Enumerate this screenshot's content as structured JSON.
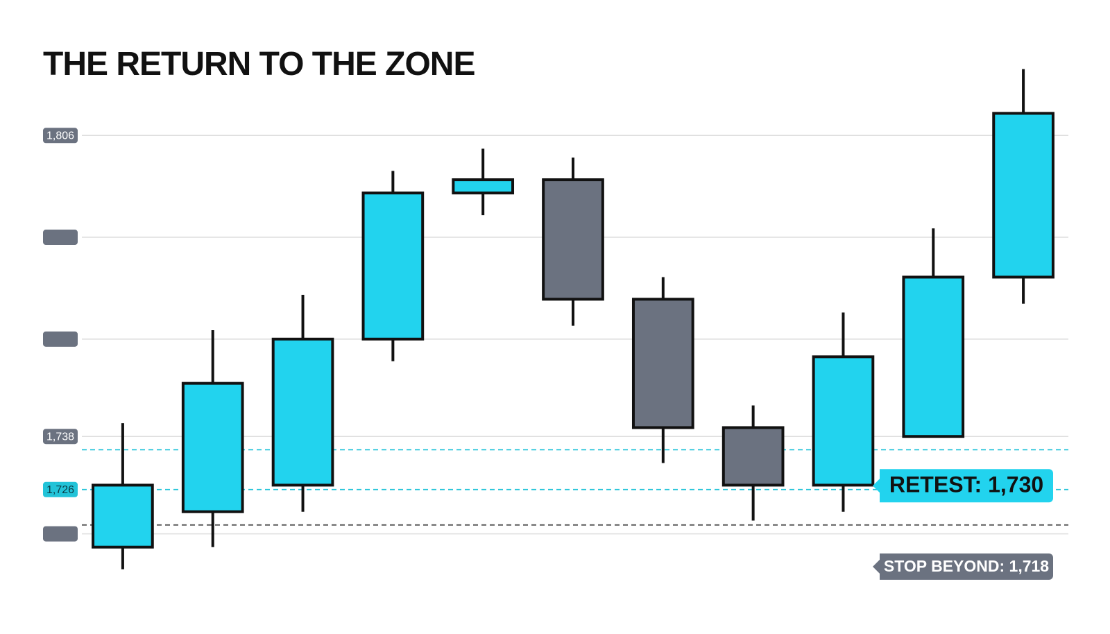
{
  "chart_data": {
    "type": "candlestick",
    "title": "THE RETURN TO THE ZONE",
    "categories": [
      null,
      null,
      null,
      null,
      null,
      null,
      null,
      null,
      null,
      null,
      null
    ],
    "open": [
      1713,
      1721,
      1727,
      1760,
      1793,
      1796,
      1769,
      1740,
      1727,
      1738,
      1774
    ],
    "high": [
      1741,
      1762,
      1770,
      1798,
      1803,
      1801,
      1774,
      1745,
      1766,
      1785,
      1821
    ],
    "low": [
      1708,
      1713,
      1721,
      1755,
      1788,
      1763,
      1732,
      1719,
      1721,
      1738,
      1768
    ],
    "close": [
      1727,
      1750,
      1760,
      1793,
      1796,
      1769,
      1740,
      1727,
      1756,
      1774,
      1811
    ],
    "up_color": "#22d3ee",
    "down_color": "#6b7280",
    "ylim": [
      1703.4,
      1822.5
    ],
    "yticks": [
      {
        "value": 1806,
        "label": "1,806"
      },
      {
        "value": 1783,
        "label": null
      },
      {
        "value": 1760,
        "label": null
      },
      {
        "value": 1738,
        "label": "1,738"
      },
      {
        "value": 1716,
        "label": null
      }
    ],
    "grid": true,
    "levels": [
      {
        "value": 1735,
        "color": "#22c3d8"
      },
      {
        "value": 1726,
        "color": "#22c3d8",
        "label": "1,726"
      },
      {
        "value": 1718,
        "color": "#555555"
      }
    ],
    "annotations": [
      {
        "text": "RETEST: 1,730",
        "value": 1730,
        "color": "#22d3ee"
      },
      {
        "text": "STOP BEYOND: 1,718",
        "value": 1718,
        "color": "#6b7280"
      }
    ]
  }
}
